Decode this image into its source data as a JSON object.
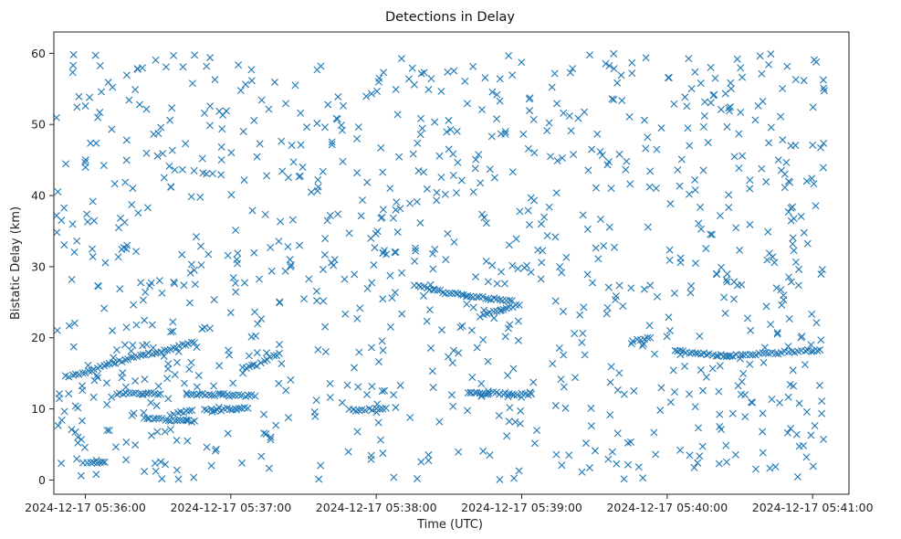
{
  "chart_data": {
    "type": "scatter",
    "title": "Detections in Delay",
    "xlabel": "Time (UTC)",
    "ylabel": "Bistatic Delay (km)",
    "marker": "x",
    "color": "#1f77b4",
    "x_unit": "seconds after 2024-12-17 05:36:00 UTC",
    "xlim": [
      -13,
      315
    ],
    "ylim": [
      -2,
      63
    ],
    "x_ticks": [
      {
        "value": 0,
        "label": "2024-12-17 05:36:00"
      },
      {
        "value": 60,
        "label": "2024-12-17 05:37:00"
      },
      {
        "value": 120,
        "label": "2024-12-17 05:38:00"
      },
      {
        "value": 180,
        "label": "2024-12-17 05:39:00"
      },
      {
        "value": 240,
        "label": "2024-12-17 05:40:00"
      },
      {
        "value": 300,
        "label": "2024-12-17 05:41:00"
      }
    ],
    "y_ticks": [
      {
        "value": 0,
        "label": "0"
      },
      {
        "value": 10,
        "label": "10"
      },
      {
        "value": 20,
        "label": "20"
      },
      {
        "value": 30,
        "label": "30"
      },
      {
        "value": 40,
        "label": "40"
      },
      {
        "value": 50,
        "label": "50"
      },
      {
        "value": 60,
        "label": "60"
      }
    ],
    "tracks": [
      {
        "x": [
          -8,
          0,
          5,
          10,
          15,
          20,
          25,
          30,
          35,
          40,
          45
        ],
        "y": [
          14.5,
          15.2,
          15.8,
          16.3,
          16.8,
          17.2,
          17.6,
          18.0,
          18.4,
          18.9,
          19.3
        ]
      },
      {
        "x": [
          13,
          25,
          31
        ],
        "y": [
          12.1,
          12.1,
          12.1
        ]
      },
      {
        "x": [
          42,
          56,
          62,
          70
        ],
        "y": [
          12.0,
          12.0,
          11.9,
          11.8
        ]
      },
      {
        "x": [
          65,
          71,
          75,
          80
        ],
        "y": [
          15.8,
          16.2,
          17.0,
          17.8
        ]
      },
      {
        "x": [
          49,
          56,
          62,
          67
        ],
        "y": [
          9.8,
          9.9,
          10.0,
          10.1
        ]
      },
      {
        "x": [
          24,
          38,
          40,
          45
        ],
        "y": [
          8.6,
          8.4,
          8.4,
          8.3
        ]
      },
      {
        "x": [
          -1,
          2,
          6,
          8
        ],
        "y": [
          2.3,
          2.4,
          2.4,
          2.5
        ]
      },
      {
        "x": [
          35,
          38,
          44
        ],
        "y": [
          9.1,
          9.4,
          9.8
        ]
      },
      {
        "x": [
          109,
          113,
          117,
          120,
          124
        ],
        "y": [
          9.8,
          9.9,
          10.0,
          10.0,
          10.1
        ]
      },
      {
        "x": [
          136,
          141,
          145,
          150,
          155,
          160,
          165,
          170,
          176
        ],
        "y": [
          27.4,
          27.0,
          26.6,
          26.3,
          26.0,
          25.8,
          25.6,
          25.4,
          25.2
        ]
      },
      {
        "x": [
          163,
          167,
          171,
          175,
          179
        ],
        "y": [
          23.0,
          23.4,
          23.8,
          24.2,
          24.6
        ]
      },
      {
        "x": [
          158,
          164,
          171,
          177,
          184
        ],
        "y": [
          12.2,
          12.2,
          12.2,
          12.1,
          12.1
        ]
      },
      {
        "x": [
          243,
          249,
          255,
          260,
          266
        ],
        "y": [
          18.3,
          18.0,
          17.7,
          17.6,
          17.5
        ]
      },
      {
        "x": [
          266,
          274,
          282,
          290,
          297,
          303
        ],
        "y": [
          17.5,
          17.6,
          17.8,
          18.0,
          18.1,
          18.3
        ]
      },
      {
        "x": [
          226,
          229,
          233
        ],
        "y": [
          19.5,
          19.8,
          20.0
        ]
      }
    ],
    "scatter_seed": 20241217,
    "scatter_clusters": [
      {
        "x": [
          -12,
          50
        ],
        "y": [
          0,
          60
        ],
        "n": 220
      },
      {
        "x": [
          50,
          115
        ],
        "y": [
          0,
          60
        ],
        "n": 170
      },
      {
        "x": [
          115,
          180
        ],
        "y": [
          0,
          60
        ],
        "n": 210
      },
      {
        "x": [
          180,
          245
        ],
        "y": [
          0,
          60
        ],
        "n": 170
      },
      {
        "x": [
          245,
          305
        ],
        "y": [
          0,
          60
        ],
        "n": 220
      }
    ]
  }
}
